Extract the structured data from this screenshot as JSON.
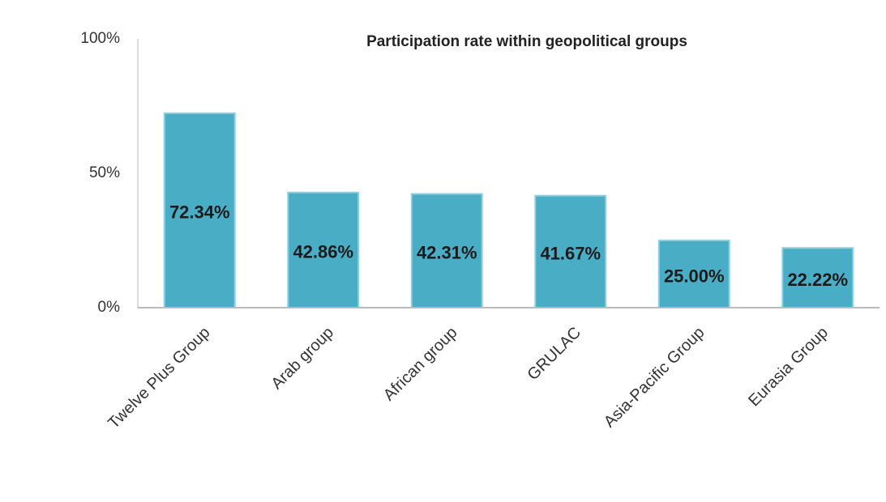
{
  "chart_data": {
    "type": "bar",
    "title": "Participation rate within geopolitical groups",
    "categories": [
      "Twelve Plus Group",
      "Arab group",
      "African group",
      "GRULAC",
      "Asia-Pacific Group",
      "Eurasia Group"
    ],
    "values": [
      72.34,
      42.86,
      42.31,
      41.67,
      25.0,
      22.22
    ],
    "value_labels": [
      "72.34%",
      "42.86%",
      "42.31%",
      "41.67%",
      "25.00%",
      "22.22%"
    ],
    "color": "#4aadc6",
    "ylim": [
      0,
      100
    ],
    "yticks": [
      {
        "value": 0,
        "label": "0%"
      },
      {
        "value": 50,
        "label": "50%"
      },
      {
        "value": 100,
        "label": "100%"
      }
    ],
    "grid": false
  }
}
